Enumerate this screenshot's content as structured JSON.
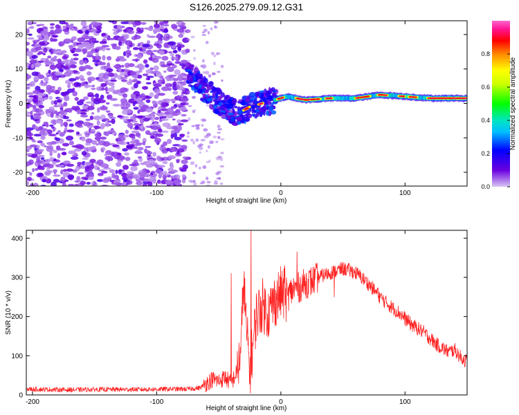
{
  "figure_title": "S126.2025.279.09.12.G31",
  "chart_data": [
    {
      "type": "heatmap",
      "name": "spectrogram",
      "xlabel": "Height of straight line (km)",
      "ylabel": "Frequency (Hz)",
      "xlim": [
        -205,
        150
      ],
      "ylim": [
        -24,
        24
      ],
      "xticks": [
        -200,
        -100,
        0,
        100
      ],
      "xtick_labels": [
        "-200",
        "-100",
        "0",
        "100"
      ],
      "yticks": [
        -20,
        -10,
        0,
        10,
        20
      ],
      "ytick_labels": [
        "-20",
        "-10",
        "0",
        "10",
        "20"
      ],
      "colorbar": {
        "label": "Normalized spectral amplitude",
        "range": [
          0.0,
          1.0
        ],
        "ticks": [
          0.0,
          0.2,
          0.4,
          0.6,
          0.8
        ],
        "tick_labels": [
          "0.0",
          "0.2",
          "0.4",
          "0.6",
          "0.8"
        ],
        "colors": [
          "#d9c6f2",
          "#5a00d0",
          "#0000ff",
          "#00e5ff",
          "#00ff00",
          "#ffff00",
          "#ff8800",
          "#ff0000",
          "#ff1493",
          "#ff66cc"
        ]
      },
      "regions": [
        {
          "description": "noise",
          "x_range": [
            -205,
            -75
          ],
          "freq_range": [
            -24,
            24
          ],
          "amplitude_range": [
            0.0,
            0.15
          ]
        },
        {
          "description": "transition",
          "x_range": [
            -75,
            -5
          ],
          "freq_range": [
            -6,
            10
          ],
          "amplitude_range": [
            0.05,
            0.4
          ]
        },
        {
          "description": "signal",
          "x_range": [
            -5,
            150
          ],
          "freq_range": [
            0.5,
            3.5
          ],
          "amplitude_range": [
            0.2,
            1.0
          ]
        }
      ],
      "signal_track": {
        "x": [
          -75,
          -65,
          -55,
          -45,
          -35,
          -25,
          -15,
          -5,
          5,
          20,
          40,
          60,
          80,
          100,
          120,
          150
        ],
        "freq": [
          9,
          5,
          2,
          -1,
          -3,
          -1,
          0,
          1,
          2,
          1,
          1.5,
          1.5,
          2.5,
          2,
          1.5,
          1.5
        ]
      }
    },
    {
      "type": "line",
      "name": "snr",
      "xlabel": "Height of straight line (km)",
      "ylabel": "SNR (10 * v/v)",
      "xlim": [
        -205,
        150
      ],
      "ylim": [
        0,
        420
      ],
      "xticks": [
        -200,
        -100,
        0,
        100
      ],
      "xtick_labels": [
        "-200",
        "-100",
        "0",
        "100"
      ],
      "yticks": [
        0,
        100,
        200,
        300,
        400
      ],
      "ytick_labels": [
        "0",
        "100",
        "200",
        "300",
        "400"
      ],
      "line_color": "#ff2020",
      "series": [
        {
          "name": "SNR",
          "x": [
            -205,
            -190,
            -170,
            -150,
            -130,
            -110,
            -90,
            -75,
            -65,
            -60,
            -55,
            -50,
            -45,
            -40,
            -35,
            -32,
            -30,
            -28,
            -25,
            -22,
            -20,
            -15,
            -10,
            -5,
            0,
            5,
            10,
            15,
            20,
            25,
            30,
            40,
            50,
            55,
            60,
            65,
            70,
            75,
            80,
            85,
            90,
            95,
            100,
            105,
            110,
            115,
            120,
            125,
            130,
            135,
            140,
            145,
            150
          ],
          "y": [
            15,
            14,
            13,
            14,
            14,
            14,
            15,
            15,
            18,
            30,
            40,
            35,
            45,
            30,
            60,
            120,
            300,
            180,
            60,
            140,
            200,
            230,
            210,
            240,
            260,
            250,
            270,
            275,
            285,
            290,
            300,
            312,
            322,
            318,
            312,
            300,
            285,
            268,
            250,
            235,
            222,
            210,
            195,
            180,
            170,
            160,
            145,
            130,
            120,
            110,
            115,
            95,
            85
          ]
        }
      ],
      "spikes": [
        {
          "x": -24,
          "y": 420
        },
        {
          "x": -40,
          "y": 310
        },
        {
          "x": 3,
          "y": 330
        },
        {
          "x": 13,
          "y": 365
        },
        {
          "x": 43,
          "y": 250
        },
        {
          "x": 78,
          "y": 270
        }
      ]
    }
  ]
}
